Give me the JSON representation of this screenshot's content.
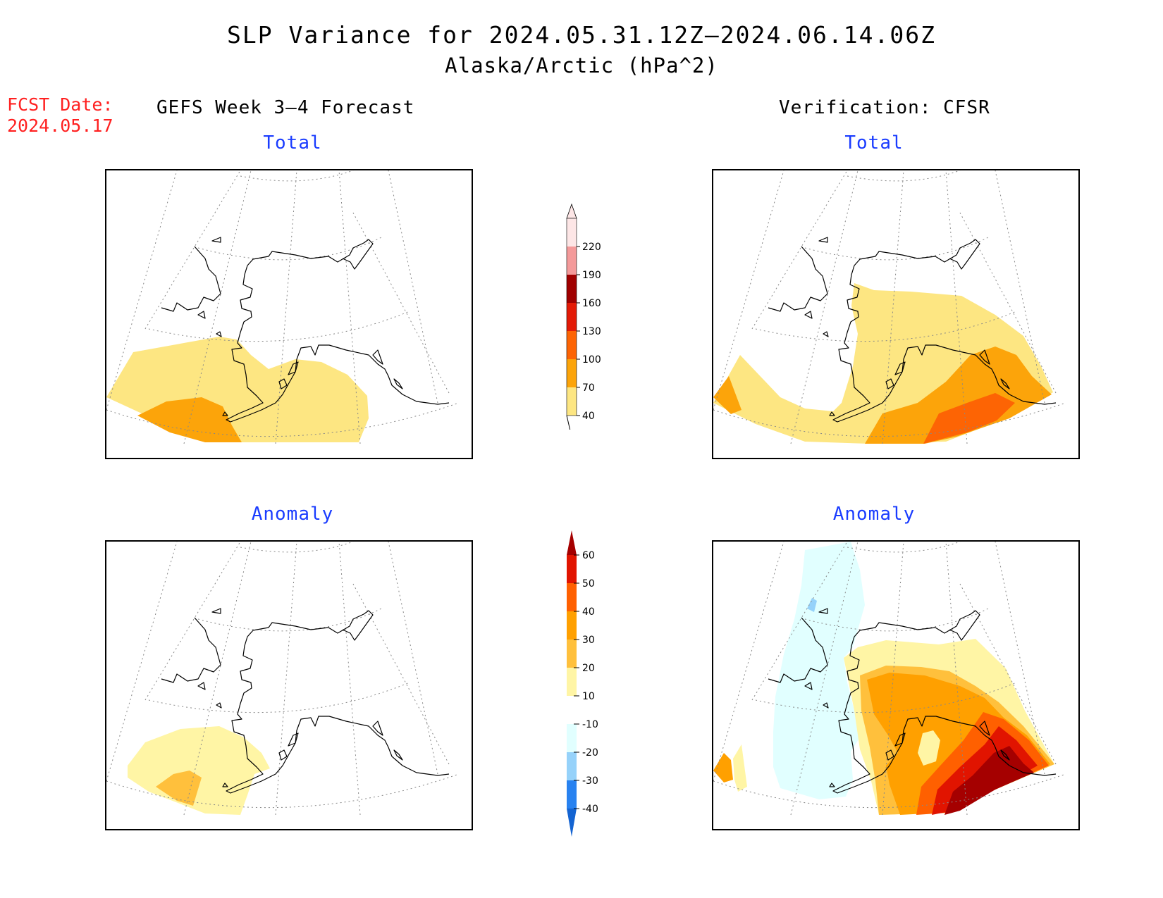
{
  "title": {
    "line1": "SLP Variance for 2024.05.31.12Z–2024.06.14.06Z",
    "line2": "Alaska/Arctic (hPa^2)"
  },
  "fcst": {
    "label": "FCST Date:",
    "date": "2024.05.17"
  },
  "columns": {
    "left": "GEFS Week 3–4 Forecast",
    "right": "Verification: CFSR"
  },
  "panels": {
    "fcst_total": "Total",
    "obs_total": "Total",
    "fcst_anom": "Anomaly",
    "obs_anom": "Anomaly"
  },
  "colorbars": {
    "total": {
      "levels": [
        "40",
        "70",
        "100",
        "130",
        "160",
        "190",
        "220"
      ],
      "colors": [
        "#fde682",
        "#fca40a",
        "#fd6404",
        "#e31a06",
        "#a00000",
        "#f49a9a",
        "#fde6e6"
      ]
    },
    "anomaly": {
      "levels": [
        "-40",
        "-30",
        "-20",
        "-10",
        "10",
        "20",
        "30",
        "40",
        "50",
        "60"
      ],
      "colors": [
        "#1464d2",
        "#2882f0",
        "#96d2fa",
        "#e1ffff",
        "#ffffff",
        "#fff5a5",
        "#ffc03c",
        "#ffa000",
        "#ff6000",
        "#e11400",
        "#a50000"
      ]
    }
  },
  "shading": {
    "total_light": "#fde682",
    "total_orange": "#fca40a",
    "total_darkorange": "#fd6404",
    "anom_yellow": "#fff5a5",
    "anom_lightorange": "#ffc03c",
    "anom_orange": "#ffa000",
    "anom_darkorange": "#ff6000",
    "anom_red": "#e11400",
    "anom_darkred": "#a50000",
    "anom_cyan": "#e1ffff",
    "anom_blue": "#96d2fa"
  }
}
